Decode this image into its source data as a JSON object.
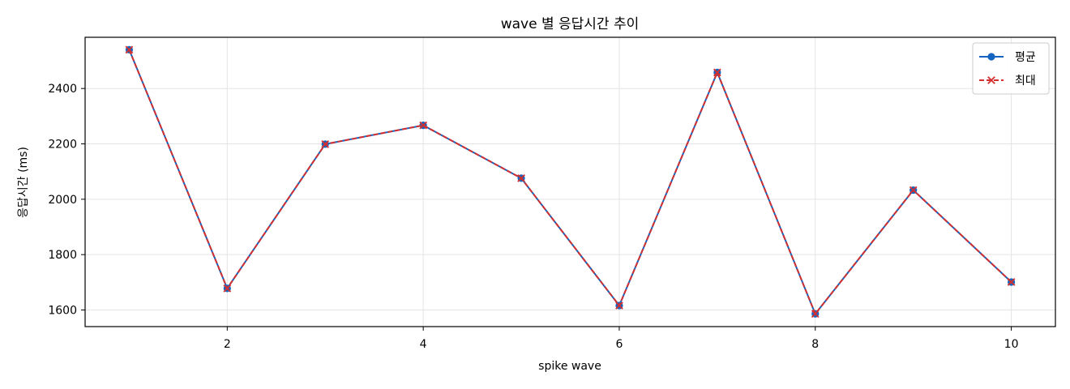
{
  "chart_data": {
    "type": "line",
    "title": "wave 별 응답시간 추이",
    "xlabel": "spike wave",
    "ylabel": "응답시간 (ms)",
    "xlim": [
      0.55,
      10.45
    ],
    "ylim": [
      1540,
      2585
    ],
    "xticks": [
      2,
      4,
      6,
      8,
      10
    ],
    "yticks": [
      1600,
      1800,
      2000,
      2200,
      2400
    ],
    "grid": true,
    "legend_position": "top-right",
    "x": [
      1,
      2,
      3,
      4,
      5,
      6,
      7,
      8,
      9,
      10
    ],
    "series": [
      {
        "name": "평균",
        "values": [
          2540,
          1678,
          2199,
          2267,
          2076,
          1616,
          2458,
          1586,
          2033,
          1701
        ],
        "color": "#1565c0",
        "line_style": "solid",
        "marker": "circle"
      },
      {
        "name": "최대",
        "values": [
          2540,
          1678,
          2199,
          2267,
          2076,
          1616,
          2458,
          1586,
          2033,
          1701
        ],
        "color": "#d32f2f",
        "line_style": "dashed",
        "marker": "x"
      }
    ]
  }
}
